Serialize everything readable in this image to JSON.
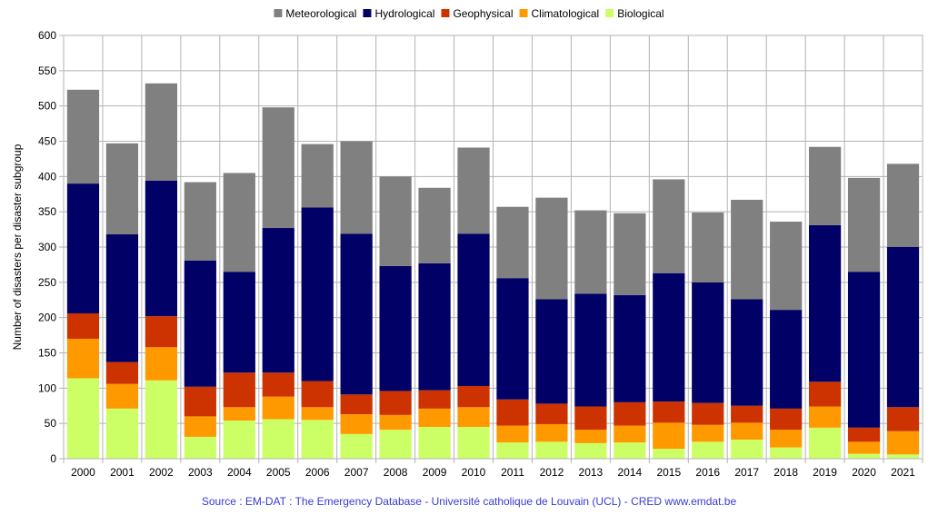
{
  "chart_data": {
    "type": "bar",
    "stacked": true,
    "ylabel": "Number of disasters per disaster subgroup",
    "xlabel": "",
    "ylim": [
      0,
      600
    ],
    "yticks": [
      0,
      50,
      100,
      150,
      200,
      250,
      300,
      350,
      400,
      450,
      500,
      550,
      600
    ],
    "grid": true,
    "legend_position": "top",
    "categories": [
      "2000",
      "2001",
      "2002",
      "2003",
      "2004",
      "2005",
      "2006",
      "2007",
      "2008",
      "2009",
      "2010",
      "2011",
      "2012",
      "2013",
      "2014",
      "2015",
      "2016",
      "2017",
      "2018",
      "2019",
      "2020",
      "2021"
    ],
    "series": [
      {
        "name": "Biological",
        "color": "#ccff66",
        "values": [
          114,
          71,
          111,
          31,
          54,
          56,
          55,
          35,
          41,
          45,
          45,
          23,
          24,
          22,
          23,
          14,
          24,
          27,
          16,
          44,
          7,
          6
        ]
      },
      {
        "name": "Climatological",
        "color": "#ff9900",
        "values": [
          56,
          35,
          47,
          29,
          19,
          32,
          18,
          28,
          21,
          26,
          28,
          24,
          25,
          19,
          24,
          37,
          24,
          24,
          25,
          30,
          17,
          33
        ]
      },
      {
        "name": "Geophysical",
        "color": "#cc3300",
        "values": [
          36,
          31,
          44,
          42,
          49,
          34,
          37,
          28,
          34,
          26,
          30,
          37,
          29,
          33,
          33,
          30,
          31,
          24,
          30,
          35,
          20,
          34
        ]
      },
      {
        "name": "Hydrological",
        "color": "#000066",
        "values": [
          184,
          181,
          192,
          179,
          143,
          205,
          246,
          228,
          177,
          180,
          216,
          172,
          148,
          160,
          152,
          182,
          171,
          151,
          140,
          222,
          221,
          227
        ]
      },
      {
        "name": "Meteorological",
        "color": "#808080",
        "values": [
          133,
          129,
          138,
          111,
          140,
          171,
          90,
          131,
          127,
          107,
          122,
          101,
          144,
          118,
          116,
          133,
          99,
          141,
          125,
          111,
          133,
          118
        ]
      }
    ],
    "legend_order": [
      "Meteorological",
      "Hydrological",
      "Geophysical",
      "Climatological",
      "Biological"
    ]
  },
  "source_text": "Source : EM-DAT : The Emergency Database - Université catholique de Louvain (UCL) - CRED  www.emdat.be"
}
